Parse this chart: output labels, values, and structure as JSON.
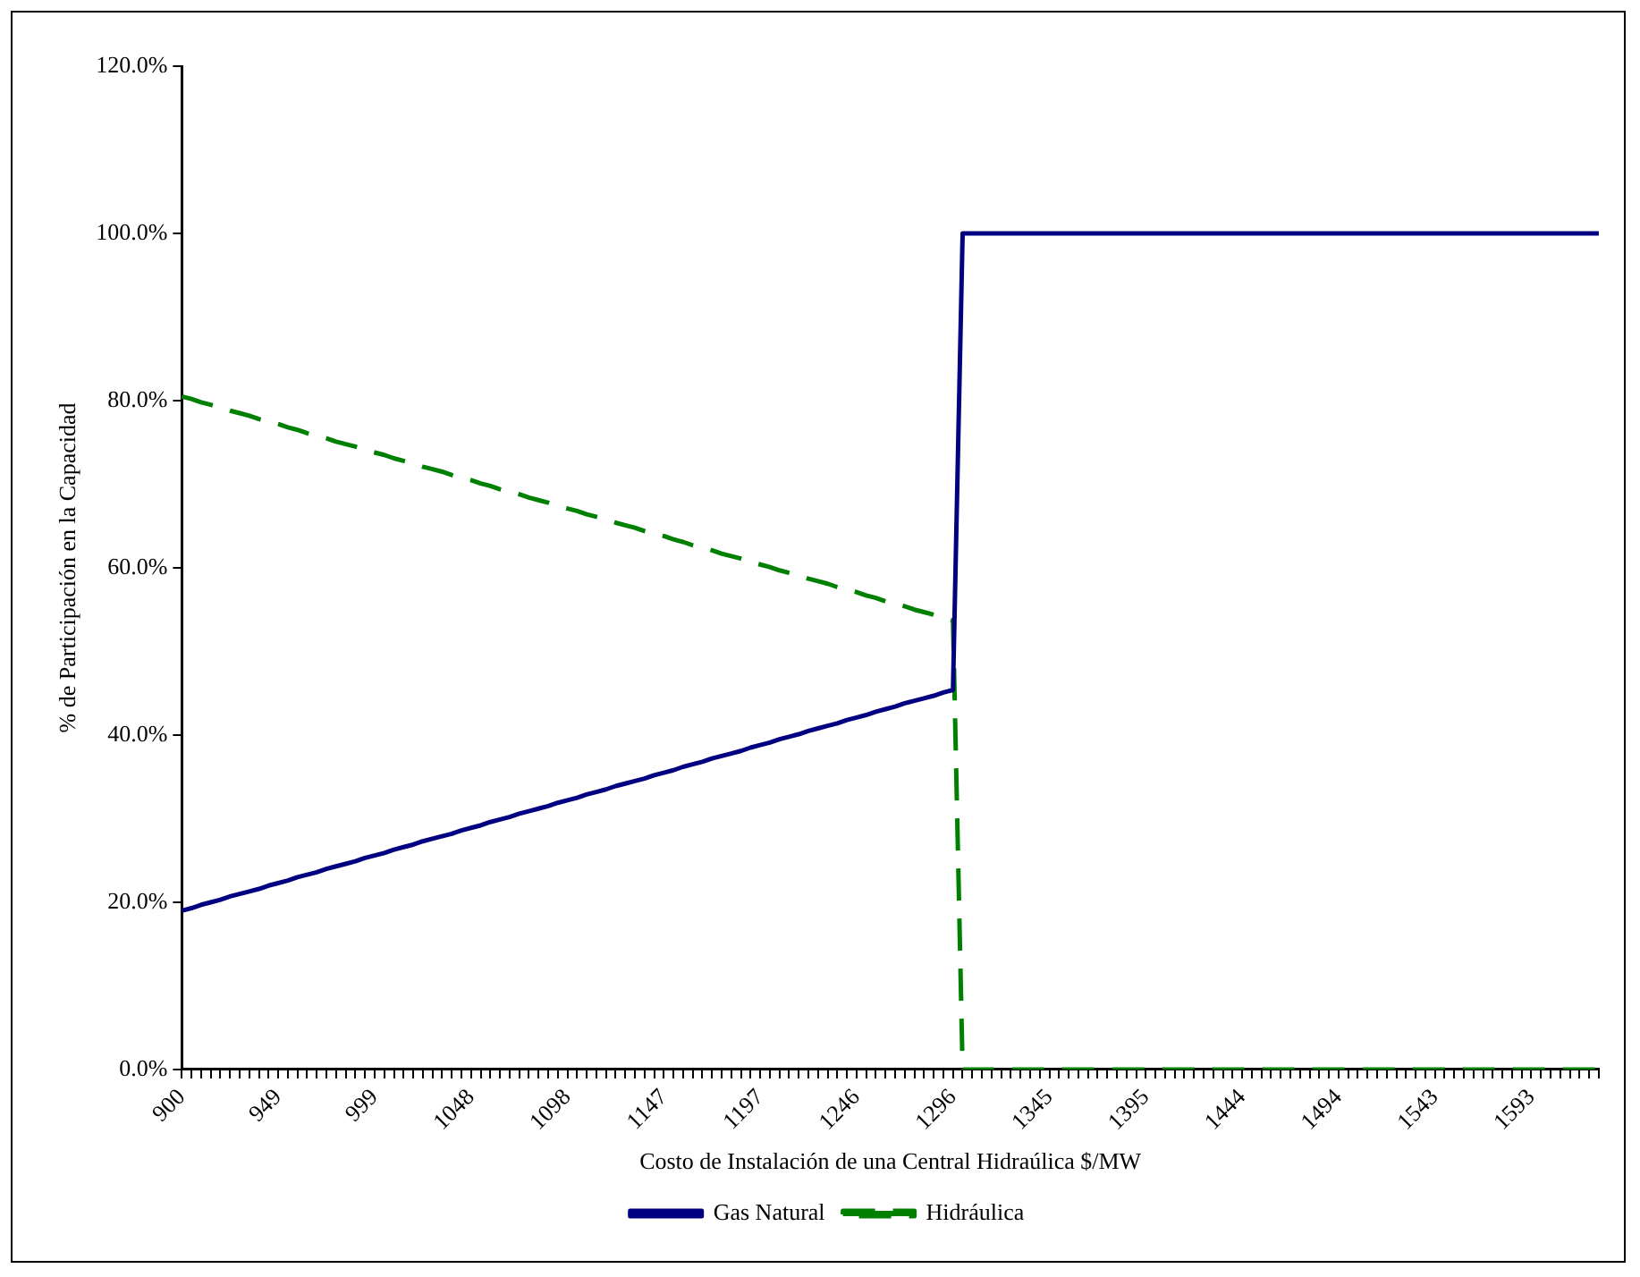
{
  "chart_data": {
    "type": "line",
    "xlabel": "Costo de Instalación de una Central Hidraúlica $/MW",
    "ylabel": "% de Participación en la Capacidad",
    "categories": [
      "900",
      null,
      null,
      null,
      null,
      null,
      null,
      null,
      null,
      null,
      "949",
      null,
      null,
      null,
      null,
      null,
      null,
      null,
      null,
      null,
      "999",
      null,
      null,
      null,
      null,
      null,
      null,
      null,
      null,
      null,
      "1048",
      null,
      null,
      null,
      null,
      null,
      null,
      null,
      null,
      null,
      "1098",
      null,
      null,
      null,
      null,
      null,
      null,
      null,
      null,
      null,
      "1147",
      null,
      null,
      null,
      null,
      null,
      null,
      null,
      null,
      null,
      "1197",
      null,
      null,
      null,
      null,
      null,
      null,
      null,
      null,
      null,
      "1246",
      null,
      null,
      null,
      null,
      null,
      null,
      null,
      null,
      null,
      "1296",
      null,
      null,
      null,
      null,
      null,
      null,
      null,
      null,
      null,
      "1345",
      null,
      null,
      null,
      null,
      null,
      null,
      null,
      null,
      null,
      "1395",
      null,
      null,
      null,
      null,
      null,
      null,
      null,
      null,
      null,
      "1444",
      null,
      null,
      null,
      null,
      null,
      null,
      null,
      null,
      null,
      "1494",
      null,
      null,
      null,
      null,
      null,
      null,
      null,
      null,
      null,
      "1543",
      null,
      null,
      null,
      null,
      null,
      null,
      null,
      null,
      null,
      "1593",
      null,
      null,
      null,
      null,
      null,
      null,
      null
    ],
    "series": [
      {
        "name": "Gas Natural",
        "color": "#000080",
        "line_style": "solid",
        "values": [
          19.0,
          19.3,
          19.7,
          20.0,
          20.3,
          20.7,
          21.0,
          21.3,
          21.6,
          22.0,
          22.3,
          22.6,
          23.0,
          23.3,
          23.6,
          24.0,
          24.3,
          24.6,
          24.9,
          25.3,
          25.6,
          25.9,
          26.3,
          26.6,
          26.9,
          27.3,
          27.6,
          27.9,
          28.2,
          28.6,
          28.9,
          29.2,
          29.6,
          29.9,
          30.2,
          30.6,
          30.9,
          31.2,
          31.5,
          31.9,
          32.2,
          32.5,
          32.9,
          33.2,
          33.5,
          33.9,
          34.2,
          34.5,
          34.8,
          35.2,
          35.5,
          35.8,
          36.2,
          36.5,
          36.8,
          37.2,
          37.5,
          37.8,
          38.1,
          38.5,
          38.8,
          39.1,
          39.5,
          39.8,
          40.1,
          40.5,
          40.8,
          41.1,
          41.4,
          41.8,
          42.1,
          42.4,
          42.8,
          43.1,
          43.4,
          43.8,
          44.1,
          44.4,
          44.7,
          45.1,
          45.4,
          100,
          100,
          100,
          100,
          100,
          100,
          100,
          100,
          100,
          100,
          100,
          100,
          100,
          100,
          100,
          100,
          100,
          100,
          100,
          100,
          100,
          100,
          100,
          100,
          100,
          100,
          100,
          100,
          100,
          100,
          100,
          100,
          100,
          100,
          100,
          100,
          100,
          100,
          100,
          100,
          100,
          100,
          100,
          100,
          100,
          100,
          100,
          100,
          100,
          100,
          100,
          100,
          100,
          100,
          100,
          100,
          100,
          100,
          100,
          100,
          100,
          100,
          100,
          100,
          100,
          100,
          100
        ]
      },
      {
        "name": "Hidráulica",
        "color": "#008000",
        "line_style": "dashed",
        "values": [
          80.5,
          80.2,
          79.8,
          79.5,
          79.2,
          78.8,
          78.5,
          78.2,
          77.8,
          77.5,
          77.2,
          76.8,
          76.5,
          76.1,
          75.8,
          75.5,
          75.1,
          74.8,
          74.5,
          74.1,
          73.8,
          73.5,
          73.1,
          72.8,
          72.5,
          72.1,
          71.8,
          71.5,
          71.1,
          70.8,
          70.5,
          70.1,
          69.8,
          69.4,
          69.1,
          68.8,
          68.4,
          68.1,
          67.8,
          67.4,
          67.1,
          66.8,
          66.4,
          66.1,
          65.8,
          65.4,
          65.1,
          64.8,
          64.4,
          64.1,
          63.8,
          63.4,
          63.1,
          62.7,
          62.4,
          62.1,
          61.7,
          61.4,
          61.1,
          60.7,
          60.4,
          60.1,
          59.7,
          59.4,
          59.1,
          58.7,
          58.4,
          58.1,
          57.7,
          57.4,
          57.1,
          56.7,
          56.4,
          56.0,
          55.7,
          55.4,
          55.0,
          54.7,
          54.4,
          54.0,
          53.7,
          0,
          0,
          0,
          0,
          0,
          0,
          0,
          0,
          0,
          0,
          0,
          0,
          0,
          0,
          0,
          0,
          0,
          0,
          0,
          0,
          0,
          0,
          0,
          0,
          0,
          0,
          0,
          0,
          0,
          0,
          0,
          0,
          0,
          0,
          0,
          0,
          0,
          0,
          0,
          0,
          0,
          0,
          0,
          0,
          0,
          0,
          0,
          0,
          0,
          0,
          0,
          0,
          0,
          0,
          0,
          0,
          0,
          0,
          0,
          0,
          0,
          0,
          0,
          0,
          0,
          0,
          0
        ]
      }
    ],
    "ylim": [
      0,
      120
    ],
    "yticks": [
      {
        "value": 0,
        "label": "0.0%"
      },
      {
        "value": 20,
        "label": "20.0%"
      },
      {
        "value": 40,
        "label": "40.0%"
      },
      {
        "value": 60,
        "label": "60.0%"
      },
      {
        "value": 80,
        "label": "80.0%"
      },
      {
        "value": 100,
        "label": "100.0%"
      },
      {
        "value": 120,
        "label": "120.0%"
      }
    ],
    "grid": false,
    "legend": "bottom",
    "marker": "none"
  }
}
